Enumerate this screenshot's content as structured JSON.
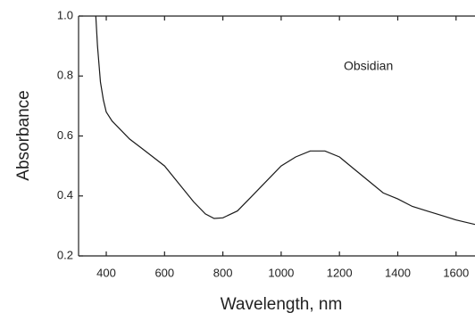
{
  "chart_data": {
    "type": "line",
    "x_label": "Wavelength, nm",
    "y_label": "Absorbance",
    "annotation": "Obsidian",
    "x": [
      364,
      370,
      380,
      390,
      400,
      420,
      450,
      480,
      520,
      560,
      600,
      650,
      700,
      740,
      770,
      800,
      850,
      900,
      950,
      1000,
      1050,
      1100,
      1150,
      1200,
      1250,
      1300,
      1350,
      1400,
      1450,
      1500,
      1550,
      1600,
      1665
    ],
    "values": [
      1.0,
      0.9,
      0.78,
      0.72,
      0.68,
      0.65,
      0.62,
      0.59,
      0.56,
      0.53,
      0.5,
      0.44,
      0.38,
      0.34,
      0.325,
      0.327,
      0.35,
      0.4,
      0.45,
      0.5,
      0.53,
      0.55,
      0.55,
      0.53,
      0.49,
      0.45,
      0.41,
      0.39,
      0.365,
      0.35,
      0.335,
      0.32,
      0.305
    ],
    "color": "#1a1a1a",
    "xlim": [
      305,
      1665
    ],
    "ylim": [
      0.2,
      1.0
    ],
    "xticks": [
      400,
      600,
      800,
      1000,
      1200,
      1400,
      1600
    ],
    "yticks": [
      {
        "value": 0.2,
        "label": "0.2"
      },
      {
        "value": 0.4,
        "label": "0.4"
      },
      {
        "value": 0.6,
        "label": "0.6"
      },
      {
        "value": 0.8,
        "label": "0.8"
      },
      {
        "value": 1.0,
        "label": "1.0"
      }
    ]
  }
}
